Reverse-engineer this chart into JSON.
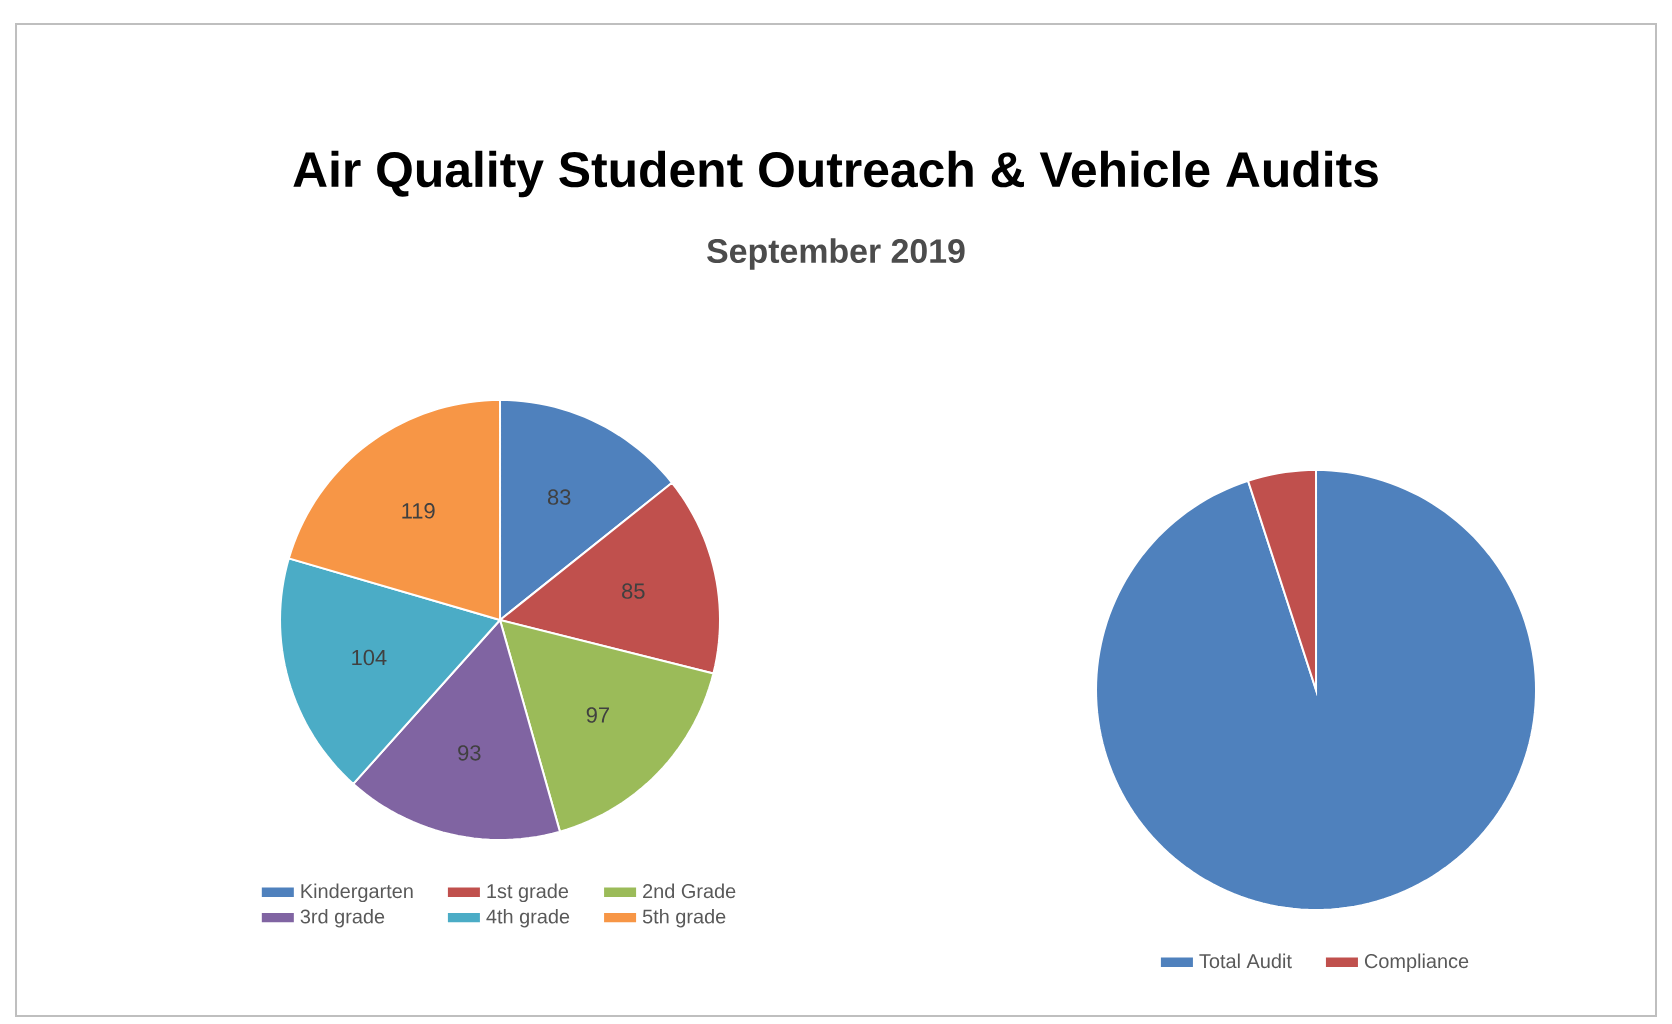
{
  "chart_data": [
    {
      "type": "pie",
      "title": "Air Quality Student Outreach & Vehicle Audits",
      "subtitle": "September 2019",
      "categories": [
        "Kindergarten",
        "1st grade",
        "2nd Grade",
        "3rd grade",
        "4th grade",
        "5th grade"
      ],
      "values": [
        83,
        85,
        97,
        93,
        104,
        119
      ],
      "colors": [
        "#4f81bd",
        "#c0504d",
        "#9bbb59",
        "#8064a2",
        "#4bacc6",
        "#f79646"
      ],
      "data_labels": true,
      "legend": "bottom"
    },
    {
      "type": "pie",
      "categories": [
        "Total Audit",
        "Compliance"
      ],
      "values": [
        95,
        5
      ],
      "colors": [
        "#4f81bd",
        "#c0504d"
      ],
      "legend": "bottom"
    }
  ]
}
